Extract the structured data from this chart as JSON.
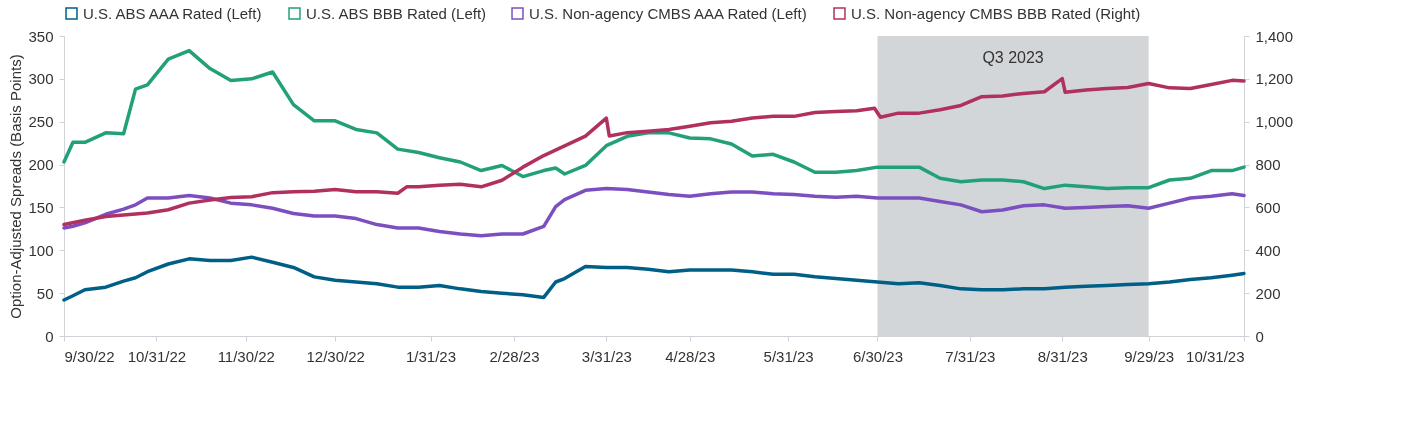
{
  "chart_data": {
    "type": "line",
    "ylabel": "Option-Adjusted Spreads (Basis Points)",
    "legend": "top",
    "xlim": [
      "2022-09-30",
      "2023-10-31"
    ],
    "xticks": [
      {
        "value": "2022-09-30",
        "label": "9/30/22"
      },
      {
        "value": "2022-10-31",
        "label": "10/31/22"
      },
      {
        "value": "2022-11-30",
        "label": "11/30/22"
      },
      {
        "value": "2022-12-30",
        "label": "12/30/22"
      },
      {
        "value": "2023-01-31",
        "label": "1/31/23"
      },
      {
        "value": "2023-02-28",
        "label": "2/28/23"
      },
      {
        "value": "2023-03-31",
        "label": "3/31/23"
      },
      {
        "value": "2023-04-28",
        "label": "4/28/23"
      },
      {
        "value": "2023-05-31",
        "label": "5/31/23"
      },
      {
        "value": "2023-06-30",
        "label": "6/30/23"
      },
      {
        "value": "2023-07-31",
        "label": "7/31/23"
      },
      {
        "value": "2023-08-31",
        "label": "8/31/23"
      },
      {
        "value": "2023-09-29",
        "label": "9/29/23"
      },
      {
        "value": "2023-10-31",
        "label": "10/31/23"
      }
    ],
    "ylim": [
      0,
      350
    ],
    "yticks": [
      0,
      50,
      100,
      150,
      200,
      250,
      300,
      350
    ],
    "y2lim": [
      0,
      1400
    ],
    "y2ticks": [
      0,
      200,
      400,
      600,
      800,
      {
        "value": 1000,
        "label": "1,000"
      },
      {
        "value": 1200,
        "label": "1,200"
      },
      {
        "value": 1400,
        "label": "1,400"
      }
    ],
    "bands": [
      {
        "axis": "x",
        "from": "2023-06-30",
        "to": "2023-09-29",
        "label": "Q3 2023",
        "color": "#d3d6d9"
      }
    ],
    "series": [
      {
        "name": "U.S. ABS AAA Rated (Left)",
        "color": "#005f87",
        "x": [
          "2022-09-30",
          "2022-10-03",
          "2022-10-07",
          "2022-10-14",
          "2022-10-20",
          "2022-10-24",
          "2022-10-28",
          "2022-11-04",
          "2022-11-11",
          "2022-11-18",
          "2022-11-25",
          "2022-12-02",
          "2022-12-09",
          "2022-12-16",
          "2022-12-23",
          "2022-12-30",
          "2023-01-06",
          "2023-01-13",
          "2023-01-20",
          "2023-01-27",
          "2023-02-03",
          "2023-02-10",
          "2023-02-17",
          "2023-02-24",
          "2023-03-03",
          "2023-03-10",
          "2023-03-14",
          "2023-03-17",
          "2023-03-24",
          "2023-03-31",
          "2023-04-07",
          "2023-04-14",
          "2023-04-21",
          "2023-04-28",
          "2023-05-05",
          "2023-05-12",
          "2023-05-19",
          "2023-05-26",
          "2023-06-02",
          "2023-06-09",
          "2023-06-16",
          "2023-06-23",
          "2023-06-30",
          "2023-07-07",
          "2023-07-14",
          "2023-07-21",
          "2023-07-28",
          "2023-08-04",
          "2023-08-11",
          "2023-08-18",
          "2023-08-25",
          "2023-09-01",
          "2023-09-08",
          "2023-09-15",
          "2023-09-22",
          "2023-09-29",
          "2023-10-06",
          "2023-10-13",
          "2023-10-20",
          "2023-10-27",
          "2023-10-31"
        ],
        "values": [
          42,
          47,
          54,
          57,
          64,
          68,
          75,
          84,
          90,
          88,
          88,
          92,
          86,
          80,
          69,
          65,
          63,
          61,
          57,
          57,
          59,
          55,
          52,
          50,
          48,
          45,
          63,
          67,
          81,
          80,
          80,
          78,
          75,
          77,
          77,
          77,
          75,
          72,
          72,
          69,
          67,
          65,
          63,
          61,
          62,
          59,
          55,
          54,
          54,
          55,
          55,
          57,
          58,
          59,
          60,
          61,
          63,
          66,
          68,
          71,
          73
        ]
      },
      {
        "name": "U.S. ABS BBB Rated (Left)",
        "color": "#22a07a",
        "x": [
          "2022-09-30",
          "2022-10-03",
          "2022-10-07",
          "2022-10-14",
          "2022-10-20",
          "2022-10-24",
          "2022-10-28",
          "2022-11-04",
          "2022-11-11",
          "2022-11-18",
          "2022-11-25",
          "2022-12-02",
          "2022-12-09",
          "2022-12-16",
          "2022-12-23",
          "2022-12-30",
          "2023-01-06",
          "2023-01-13",
          "2023-01-20",
          "2023-01-27",
          "2023-02-03",
          "2023-02-10",
          "2023-02-17",
          "2023-02-24",
          "2023-03-03",
          "2023-03-10",
          "2023-03-14",
          "2023-03-17",
          "2023-03-24",
          "2023-03-31",
          "2023-04-07",
          "2023-04-14",
          "2023-04-21",
          "2023-04-28",
          "2023-05-05",
          "2023-05-12",
          "2023-05-19",
          "2023-05-26",
          "2023-06-02",
          "2023-06-09",
          "2023-06-16",
          "2023-06-23",
          "2023-06-30",
          "2023-07-07",
          "2023-07-14",
          "2023-07-21",
          "2023-07-28",
          "2023-08-04",
          "2023-08-11",
          "2023-08-18",
          "2023-08-25",
          "2023-09-01",
          "2023-09-08",
          "2023-09-15",
          "2023-09-22",
          "2023-09-29",
          "2023-10-06",
          "2023-10-13",
          "2023-10-20",
          "2023-10-27",
          "2023-10-31"
        ],
        "values": [
          203,
          226,
          226,
          237,
          236,
          288,
          293,
          323,
          333,
          312,
          298,
          300,
          308,
          270,
          251,
          251,
          241,
          237,
          218,
          214,
          208,
          203,
          193,
          199,
          186,
          193,
          196,
          189,
          199,
          222,
          233,
          237,
          237,
          231,
          230,
          224,
          210,
          212,
          203,
          191,
          191,
          193,
          197,
          197,
          197,
          184,
          180,
          182,
          182,
          180,
          172,
          176,
          174,
          172,
          173,
          173,
          182,
          184,
          193,
          193,
          197
        ]
      },
      {
        "name": "U.S. Non-agency CMBS AAA Rated (Left)",
        "color": "#7b4fc0",
        "x": [
          "2022-09-30",
          "2022-10-03",
          "2022-10-07",
          "2022-10-14",
          "2022-10-20",
          "2022-10-24",
          "2022-10-28",
          "2022-11-04",
          "2022-11-11",
          "2022-11-18",
          "2022-11-25",
          "2022-12-02",
          "2022-12-09",
          "2022-12-16",
          "2022-12-23",
          "2022-12-30",
          "2023-01-06",
          "2023-01-13",
          "2023-01-20",
          "2023-01-27",
          "2023-02-03",
          "2023-02-10",
          "2023-02-17",
          "2023-02-24",
          "2023-03-03",
          "2023-03-10",
          "2023-03-14",
          "2023-03-17",
          "2023-03-24",
          "2023-03-31",
          "2023-04-07",
          "2023-04-14",
          "2023-04-21",
          "2023-04-28",
          "2023-05-05",
          "2023-05-12",
          "2023-05-19",
          "2023-05-26",
          "2023-06-02",
          "2023-06-09",
          "2023-06-16",
          "2023-06-23",
          "2023-06-30",
          "2023-07-07",
          "2023-07-14",
          "2023-07-21",
          "2023-07-28",
          "2023-08-04",
          "2023-08-11",
          "2023-08-18",
          "2023-08-25",
          "2023-09-01",
          "2023-09-08",
          "2023-09-15",
          "2023-09-22",
          "2023-09-29",
          "2023-10-06",
          "2023-10-13",
          "2023-10-20",
          "2023-10-27",
          "2023-10-31"
        ],
        "values": [
          126,
          128,
          132,
          142,
          148,
          153,
          161,
          161,
          164,
          161,
          155,
          153,
          149,
          143,
          140,
          140,
          137,
          130,
          126,
          126,
          122,
          119,
          117,
          119,
          119,
          128,
          151,
          159,
          170,
          172,
          171,
          168,
          165,
          163,
          166,
          168,
          168,
          166,
          165,
          163,
          162,
          163,
          161,
          161,
          161,
          157,
          153,
          145,
          147,
          152,
          153,
          149,
          150,
          151,
          152,
          149,
          155,
          161,
          163,
          166,
          164
        ]
      },
      {
        "name": "U.S. Non-agency CMBS BBB Rated (Right)",
        "color": "#b03060",
        "axis": "y2",
        "x": [
          "2022-09-30",
          "2022-10-07",
          "2022-10-14",
          "2022-10-21",
          "2022-10-28",
          "2022-11-04",
          "2022-11-11",
          "2022-11-18",
          "2022-11-25",
          "2022-12-02",
          "2022-12-09",
          "2022-12-16",
          "2022-12-23",
          "2022-12-30",
          "2023-01-06",
          "2023-01-13",
          "2023-01-20",
          "2023-01-23",
          "2023-01-27",
          "2023-02-03",
          "2023-02-10",
          "2023-02-17",
          "2023-02-24",
          "2023-03-03",
          "2023-03-10",
          "2023-03-17",
          "2023-03-24",
          "2023-03-31",
          "2023-04-01",
          "2023-04-07",
          "2023-04-14",
          "2023-04-21",
          "2023-04-28",
          "2023-05-05",
          "2023-05-12",
          "2023-05-19",
          "2023-05-26",
          "2023-06-02",
          "2023-06-09",
          "2023-06-16",
          "2023-06-23",
          "2023-06-29",
          "2023-07-01",
          "2023-07-07",
          "2023-07-14",
          "2023-07-21",
          "2023-07-28",
          "2023-08-04",
          "2023-08-11",
          "2023-08-18",
          "2023-08-25",
          "2023-08-31",
          "2023-09-01",
          "2023-09-08",
          "2023-09-15",
          "2023-09-22",
          "2023-09-29",
          "2023-10-06",
          "2023-10-13",
          "2023-10-20",
          "2023-10-27",
          "2023-10-31"
        ],
        "values": [
          520,
          540,
          558,
          566,
          574,
          589,
          620,
          635,
          646,
          650,
          669,
          673,
          676,
          684,
          673,
          673,
          666,
          696,
          696,
          704,
          708,
          696,
          727,
          788,
          842,
          887,
          933,
          1017,
          933,
          949,
          956,
          964,
          979,
          995,
          1002,
          1017,
          1025,
          1025,
          1043,
          1048,
          1051,
          1063,
          1021,
          1040,
          1040,
          1056,
          1076,
          1117,
          1120,
          1132,
          1140,
          1201,
          1137,
          1148,
          1155,
          1160,
          1178,
          1158,
          1155,
          1174,
          1193,
          1190
        ]
      }
    ]
  }
}
